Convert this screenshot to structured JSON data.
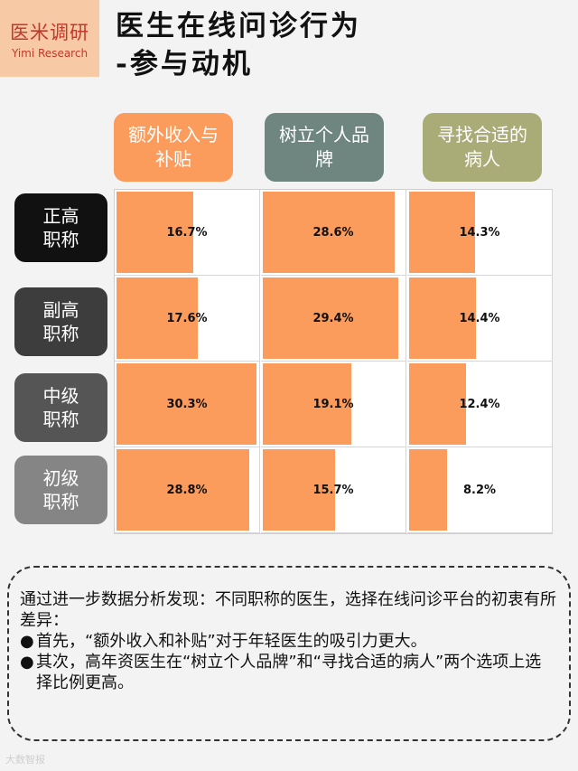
{
  "brand": {
    "cn": "医米调研",
    "en": "Yimi Research"
  },
  "title": {
    "line1": "医生在线问诊行为",
    "line2": "-参与动机"
  },
  "chart_data": {
    "type": "table",
    "columns": [
      {
        "label": "额外收入与补贴",
        "color": "#fb9b5c"
      },
      {
        "label": "树立个人品牌",
        "color": "#6e8580"
      },
      {
        "label": "寻找合适的病人",
        "color": "#aaac78"
      }
    ],
    "rows": [
      {
        "label": "正高职称",
        "color": "#111111"
      },
      {
        "label": "副高职称",
        "color": "#3d3d3d"
      },
      {
        "label": "中级职称",
        "color": "#555555"
      },
      {
        "label": "初级职称",
        "color": "#858585"
      }
    ],
    "values": [
      [
        16.7,
        28.6,
        14.3
      ],
      [
        17.6,
        29.4,
        14.4
      ],
      [
        30.3,
        19.1,
        12.4
      ],
      [
        28.8,
        15.7,
        8.2
      ]
    ],
    "value_max": 30.3,
    "unit": "%",
    "bar_color": "#fb9b5c"
  },
  "note": {
    "intro": "通过进一步数据分析发现：不同职称的医生，选择在线问诊平台的初衷有所差异：",
    "bullets": [
      "首先，“额外收入和补贴”对于年轻医生的吸引力更大。",
      "其次，高年资医生在“树立个人品牌”和“寻找合适的病人”两个选项上选择比例更高。"
    ],
    "bullet_symbol": "●"
  },
  "watermark": "大数智报"
}
